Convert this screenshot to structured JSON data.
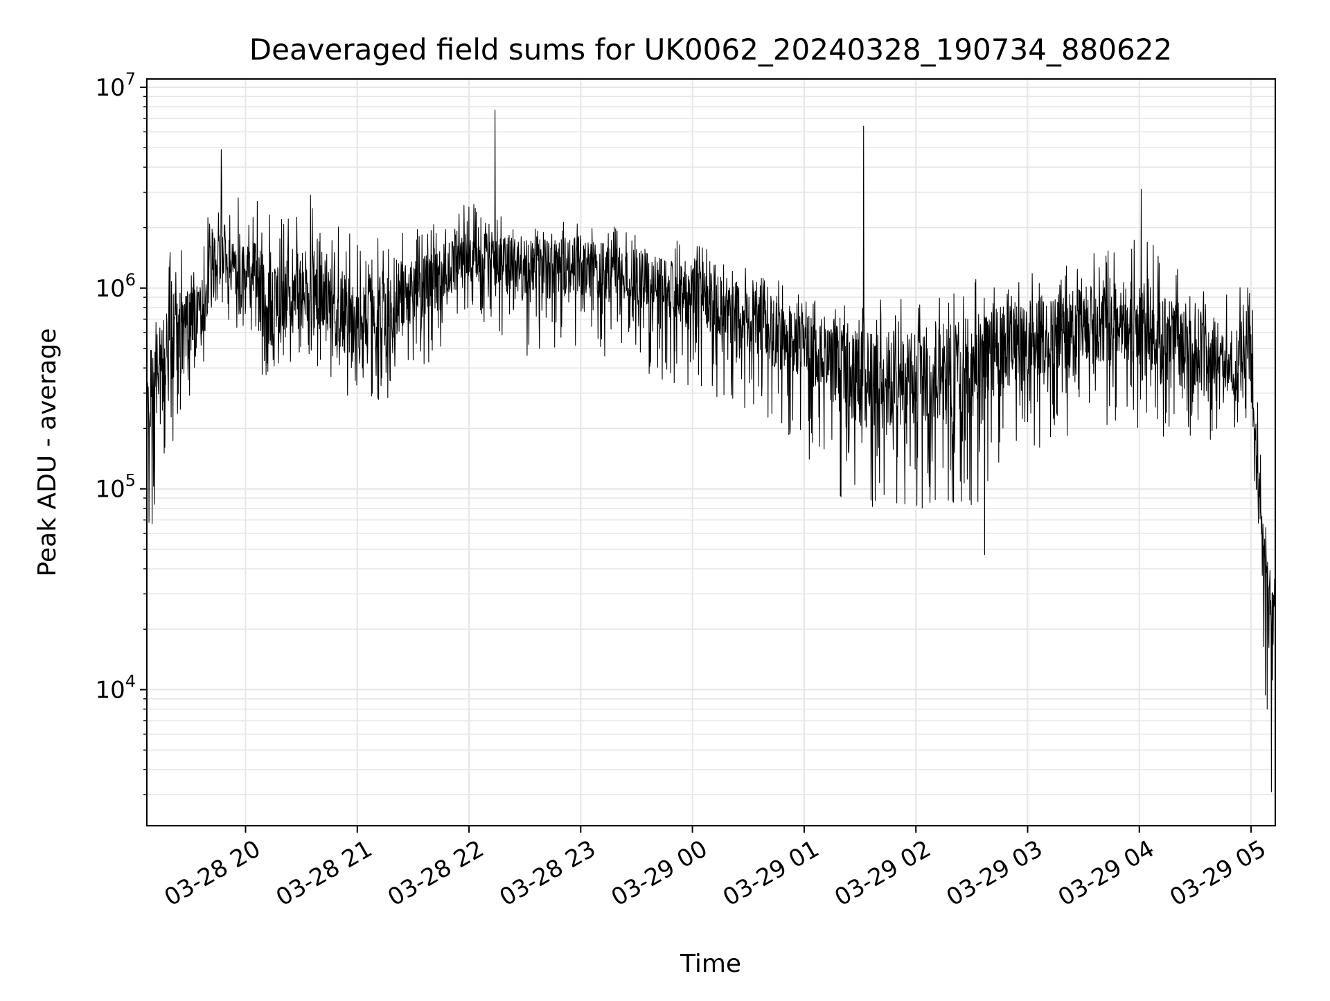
{
  "chart_data": {
    "type": "line",
    "title": "Deaveraged field sums for UK0062_20240328_190734_880622",
    "xlabel": "Time",
    "ylabel": "Peak ADU - average",
    "yscale": "log",
    "ylim": [
      2100,
      11000000
    ],
    "xlim": [
      "03-28 19:07",
      "03-29 05:13"
    ],
    "grid": true,
    "x_ticks": [
      "03-28 20",
      "03-28 21",
      "03-28 22",
      "03-28 23",
      "03-29 00",
      "03-29 01",
      "03-29 02",
      "03-29 03",
      "03-29 04",
      "03-29 05"
    ],
    "y_ticks": [
      {
        "base": "10",
        "exp": "4",
        "value": 10000
      },
      {
        "base": "10",
        "exp": "5",
        "value": 100000
      },
      {
        "base": "10",
        "exp": "6",
        "value": 1000000
      },
      {
        "base": "10",
        "exp": "7",
        "value": 10000000
      }
    ],
    "line_color": "#000000",
    "envelope": [
      {
        "t": "03-28 19:07",
        "low": 50000,
        "typical": 250000,
        "high": 600000
      },
      {
        "t": "03-28 19:20",
        "low": 150000,
        "typical": 550000,
        "high": 1600000
      },
      {
        "t": "03-28 19:35",
        "low": 250000,
        "typical": 700000,
        "high": 1500000
      },
      {
        "t": "03-28 19:45",
        "low": 700000,
        "typical": 1500000,
        "high": 3500000
      },
      {
        "t": "03-28 20:00",
        "low": 600000,
        "typical": 1300000,
        "high": 3000000
      },
      {
        "t": "03-28 20:15",
        "low": 250000,
        "typical": 800000,
        "high": 2500000
      },
      {
        "t": "03-28 20:30",
        "low": 400000,
        "typical": 1000000,
        "high": 3300000
      },
      {
        "t": "03-28 21:00",
        "low": 250000,
        "typical": 700000,
        "high": 2000000
      },
      {
        "t": "03-28 21:30",
        "low": 300000,
        "typical": 900000,
        "high": 2000000
      },
      {
        "t": "03-28 22:00",
        "low": 800000,
        "typical": 1500000,
        "high": 2700000
      },
      {
        "t": "03-28 22:30",
        "low": 400000,
        "typical": 1200000,
        "high": 2000000
      },
      {
        "t": "03-28 23:00",
        "low": 500000,
        "typical": 1300000,
        "high": 2200000
      },
      {
        "t": "03-28 23:30",
        "low": 400000,
        "typical": 1100000,
        "high": 1900000
      },
      {
        "t": "03-29 00:00",
        "low": 300000,
        "typical": 900000,
        "high": 1700000
      },
      {
        "t": "03-29 00:30",
        "low": 250000,
        "typical": 700000,
        "high": 1400000
      },
      {
        "t": "03-29 01:00",
        "low": 150000,
        "typical": 500000,
        "high": 900000
      },
      {
        "t": "03-29 01:30",
        "low": 70000,
        "typical": 350000,
        "high": 900000
      },
      {
        "t": "03-29 02:00",
        "low": 80000,
        "typical": 350000,
        "high": 900000
      },
      {
        "t": "03-29 02:30",
        "low": 80000,
        "typical": 400000,
        "high": 1200000
      },
      {
        "t": "03-29 03:00",
        "low": 150000,
        "typical": 550000,
        "high": 1200000
      },
      {
        "t": "03-29 03:30",
        "low": 200000,
        "typical": 650000,
        "high": 1400000
      },
      {
        "t": "03-29 04:00",
        "low": 200000,
        "typical": 700000,
        "high": 2000000
      },
      {
        "t": "03-29 04:30",
        "low": 150000,
        "typical": 450000,
        "high": 1000000
      },
      {
        "t": "03-29 05:00",
        "low": 200000,
        "typical": 450000,
        "high": 1200000
      },
      {
        "t": "03-29 05:05",
        "low": 30000,
        "typical": 70000,
        "high": 150000
      },
      {
        "t": "03-29 05:10",
        "low": 3000,
        "typical": 20000,
        "high": 40000
      },
      {
        "t": "03-29 05:13",
        "low": 20000,
        "typical": 30000,
        "high": 40000
      }
    ],
    "spikes": [
      {
        "t": "03-28 19:47",
        "value": 4900000
      },
      {
        "t": "03-28 22:14",
        "value": 7700000
      },
      {
        "t": "03-29 01:32",
        "value": 6400000
      },
      {
        "t": "03-29 02:37",
        "value": 47000
      },
      {
        "t": "03-29 04:01",
        "value": 3100000
      },
      {
        "t": "03-29 05:11",
        "value": 3100
      }
    ]
  }
}
